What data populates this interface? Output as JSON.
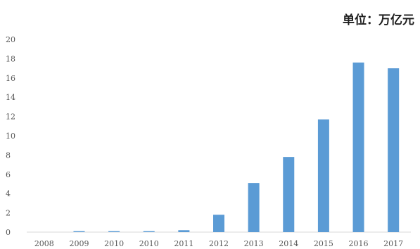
{
  "unit_label": "单位：万亿元",
  "chart_data": {
    "type": "bar",
    "categories": [
      "2008",
      "2009",
      "2010",
      "2010",
      "2011",
      "2012",
      "2013",
      "2014",
      "2015",
      "2016",
      "2017"
    ],
    "values": [
      0,
      0.1,
      0.1,
      0.1,
      0.2,
      1.8,
      5.1,
      7.8,
      11.7,
      17.6,
      17.0
    ],
    "ylim": [
      0,
      20
    ],
    "yticks": [
      0,
      2,
      4,
      6,
      8,
      10,
      12,
      14,
      16,
      18,
      20
    ],
    "bar_color": "#5b9bd5",
    "grid": false,
    "legend": "none"
  }
}
